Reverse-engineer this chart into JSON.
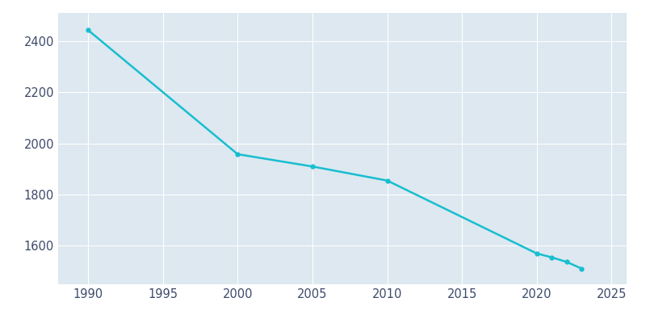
{
  "years": [
    1990,
    2000,
    2005,
    2010,
    2020,
    2021,
    2022,
    2023
  ],
  "population": [
    2443,
    1958,
    1910,
    1855,
    1570,
    1555,
    1537,
    1511
  ],
  "line_color": "#17BECF",
  "marker_color": "#17BECF",
  "figure_background": "#ffffff",
  "plot_background": "#dde8f0",
  "grid_color": "#ffffff",
  "xlim": [
    1988,
    2026
  ],
  "ylim": [
    1450,
    2510
  ],
  "xticks": [
    1990,
    1995,
    2000,
    2005,
    2010,
    2015,
    2020,
    2025
  ],
  "yticks": [
    1600,
    1800,
    2000,
    2200,
    2400
  ],
  "line_width": 1.8,
  "marker_size": 3.5,
  "tick_label_color": "#3d4a6b",
  "tick_label_fontsize": 10.5
}
